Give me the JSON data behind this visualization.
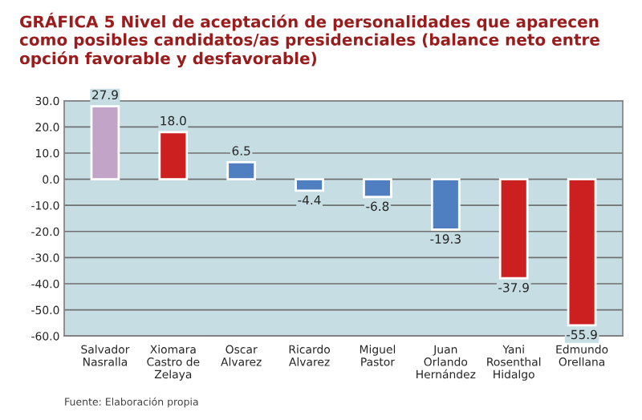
{
  "chart_data": {
    "type": "bar",
    "title": "GRÁFICA 5 Nivel de aceptación de personalidades que aparecen como posibles candidatos/as presidenciales (balance neto entre opción favorable y desfavorable)",
    "categories": [
      "Salvador\nNasralla",
      "Xiomara\nCastro de\nZelaya",
      "Oscar\nAlvarez",
      "Ricardo\nAlvarez",
      "Miguel\nPastor",
      "Juan\nOrlando\nHernández",
      "Yani\nRosenthal\nHidalgo",
      "Edmundo\nOrellana"
    ],
    "values": [
      27.9,
      18.0,
      6.5,
      -4.4,
      -6.8,
      -19.3,
      -37.9,
      -55.9
    ],
    "value_labels": [
      "27.9",
      "18.0",
      "6.5",
      "-4.4",
      "-6.8",
      "-19.3",
      "-37.9",
      "-55.9"
    ],
    "colors": [
      "#c3a4c9",
      "#cc2020",
      "#4f7fc0",
      "#4f7fc0",
      "#4f7fc0",
      "#4f7fc0",
      "#cc2020",
      "#cc2020"
    ],
    "ylim": [
      -60,
      30
    ],
    "yticks": [
      {
        "value": -60,
        "label": "-60.0"
      },
      {
        "value": -50,
        "label": "-50.0"
      },
      {
        "value": -40,
        "label": "-40.0"
      },
      {
        "value": -30,
        "label": "-30.0"
      },
      {
        "value": -20,
        "label": "-20.0"
      },
      {
        "value": -10,
        "label": "-10.0"
      },
      {
        "value": 0,
        "label": "0.0"
      },
      {
        "value": 10,
        "label": "10.0"
      },
      {
        "value": 20,
        "label": "20.0"
      },
      {
        "value": 30,
        "label": "30.0"
      }
    ],
    "grid": "y",
    "annotations": [
      "Fuente: Elaboración propia"
    ]
  }
}
